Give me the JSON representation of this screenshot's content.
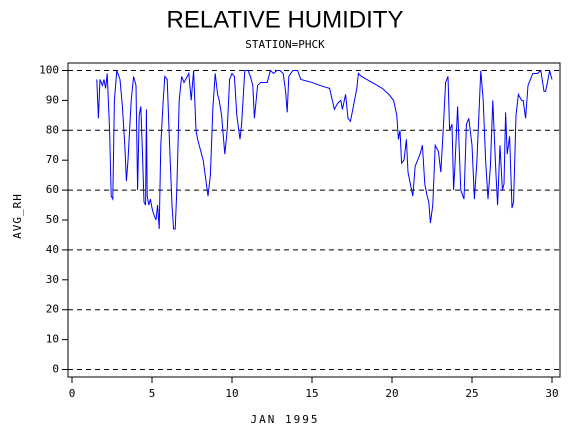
{
  "chart_data": {
    "type": "line",
    "title": "RELATIVE HUMIDITY",
    "subtitle": "STATION=PHCK",
    "x_label": "JAN 1995",
    "y_label": "AVG_RH",
    "color": "#0000ff",
    "xlim": [
      -0.25,
      30.5
    ],
    "ylim": [
      -2.5,
      102.5
    ],
    "xticks": [
      0,
      5,
      10,
      15,
      20,
      25,
      30
    ],
    "yticks": [
      0,
      10,
      20,
      30,
      40,
      50,
      60,
      70,
      80,
      90,
      100
    ],
    "grid_ticks": [
      0,
      20,
      40,
      60,
      80,
      100
    ],
    "x": [
      1.55,
      1.65,
      1.75,
      1.9,
      2.0,
      2.1,
      2.2,
      2.35,
      2.45,
      2.55,
      2.65,
      2.8,
      3.0,
      3.15,
      3.3,
      3.4,
      3.5,
      3.7,
      3.85,
      4.0,
      4.1,
      4.2,
      4.3,
      4.4,
      4.5,
      4.6,
      4.65,
      4.7,
      4.8,
      4.9,
      5.0,
      5.1,
      5.25,
      5.35,
      5.45,
      5.55,
      5.7,
      5.8,
      5.95,
      6.1,
      6.25,
      6.35,
      6.45,
      6.55,
      6.7,
      6.85,
      7.0,
      7.2,
      7.3,
      7.45,
      7.6,
      7.75,
      7.85,
      8.0,
      8.1,
      8.2,
      8.4,
      8.5,
      8.65,
      8.8,
      8.95,
      9.1,
      9.2,
      9.35,
      9.55,
      9.7,
      9.85,
      10.0,
      10.15,
      10.3,
      10.5,
      10.6,
      10.8,
      11.0,
      11.15,
      11.3,
      11.4,
      11.6,
      11.8,
      12.0,
      12.2,
      12.4,
      12.6,
      12.8,
      13.0,
      13.2,
      13.35,
      13.45,
      13.55,
      13.8,
      14.1,
      14.3,
      15.0,
      15.5,
      16.1,
      16.4,
      16.6,
      16.8,
      16.9,
      17.1,
      17.25,
      17.4,
      17.55,
      17.8,
      17.9,
      18.1,
      19.4,
      19.8,
      20.1,
      20.3,
      20.4,
      20.5,
      20.6,
      20.75,
      20.9,
      21.0,
      21.15,
      21.3,
      21.45,
      21.6,
      21.75,
      21.9,
      22.05,
      22.2,
      22.3,
      22.4,
      22.55,
      22.7,
      22.9,
      23.05,
      23.2,
      23.35,
      23.5,
      23.6,
      23.75,
      23.85,
      23.95,
      24.1,
      24.3,
      24.5,
      24.65,
      24.8,
      25.0,
      25.15,
      25.3,
      25.55,
      25.7,
      25.85,
      26.0,
      26.15,
      26.3,
      26.5,
      26.6,
      26.75,
      26.9,
      27.0,
      27.1,
      27.2,
      27.35,
      27.5,
      27.6,
      27.75,
      27.9,
      28.1,
      28.2,
      28.35,
      28.5,
      28.8,
      29.1,
      29.3,
      29.5,
      29.6,
      29.75,
      29.85,
      30.0
    ],
    "values": [
      97,
      84,
      97,
      95,
      97,
      94,
      99,
      80,
      58,
      57,
      90,
      100,
      97,
      88,
      75,
      63,
      70,
      90,
      98,
      95,
      60,
      85,
      88,
      73,
      56,
      55,
      87,
      58,
      55,
      57,
      54,
      52,
      50,
      55,
      47,
      75,
      90,
      98,
      97,
      75,
      55,
      47,
      47,
      60,
      90,
      98,
      96,
      98,
      99,
      90,
      100,
      80,
      77,
      74,
      72,
      70,
      62,
      58,
      65,
      87,
      99,
      92,
      90,
      85,
      72,
      80,
      97,
      99,
      98,
      85,
      77,
      82,
      100,
      100,
      98,
      95,
      84,
      95,
      96,
      96,
      96,
      100,
      99,
      100,
      100,
      99,
      93,
      86,
      98,
      100,
      100,
      97,
      96,
      95,
      94,
      87,
      89,
      90,
      87,
      92,
      84,
      83,
      87,
      94,
      99,
      98,
      94,
      92,
      90,
      85,
      77,
      80,
      69,
      70,
      77,
      66,
      62,
      58,
      68,
      70,
      72,
      75,
      62,
      58,
      56,
      49,
      55,
      75,
      73,
      66,
      80,
      96,
      98,
      80,
      82,
      60,
      70,
      88,
      60,
      57,
      82,
      84,
      75,
      57,
      69,
      100,
      90,
      70,
      57,
      68,
      90,
      65,
      55,
      75,
      60,
      62,
      86,
      72,
      78,
      54,
      56,
      85,
      92,
      90,
      90,
      84,
      95,
      99,
      99,
      100,
      93,
      93,
      97,
      100,
      97
    ]
  }
}
